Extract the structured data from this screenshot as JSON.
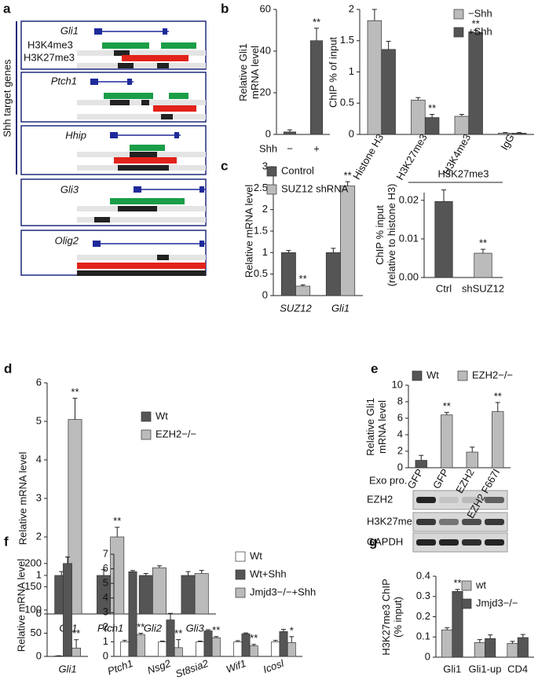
{
  "panel_labels": [
    "a",
    "b",
    "c",
    "d",
    "e",
    "f",
    "g"
  ],
  "genome_tracks": {
    "side_label": "Shh target genes",
    "marks": [
      {
        "name": "H3K4me3",
        "color": "#1a9e48"
      },
      {
        "name": "H3K27me3",
        "color": "#e2231a"
      }
    ],
    "genes": [
      "Gli1",
      "Ptch1",
      "Hhip",
      "Gli3",
      "Olig2"
    ]
  },
  "blot": {
    "rows": [
      "EZH2",
      "H3K27me3",
      "GAPDH"
    ]
  },
  "chart_data": [
    {
      "type": "bar",
      "ylabel": [
        "Relative Gli1",
        "mRNA level"
      ],
      "xlabel": "Shh",
      "categories": [
        "−",
        "+"
      ],
      "values": [
        1.2,
        45
      ],
      "errors": [
        1.0,
        6
      ],
      "stars": [
        null,
        "**"
      ],
      "color": "#555555",
      "ylim": [
        0,
        60
      ],
      "yticks": [
        0,
        20,
        40,
        60
      ]
    },
    {
      "type": "bar",
      "ylabel": "ChIP % of input",
      "categories": [
        "Histone H3",
        "H3K27me3",
        "H3K4me3",
        "IgG"
      ],
      "series": [
        {
          "name": "−Shh",
          "color": "#bbbbbb",
          "values": [
            1.82,
            0.55,
            0.29,
            0.02
          ],
          "errors": [
            0.18,
            0.04,
            0.03,
            0.01
          ],
          "stars": [
            null,
            null,
            null,
            null
          ]
        },
        {
          "name": "+Shh",
          "color": "#555555",
          "values": [
            1.36,
            0.27,
            1.63,
            0.02
          ],
          "errors": [
            0.13,
            0.05,
            0.04,
            0.01
          ],
          "stars": [
            null,
            "**",
            "**",
            null
          ]
        }
      ],
      "ylim": [
        0,
        2
      ],
      "yticks": [
        0,
        0.5,
        1,
        1.5,
        2
      ],
      "legend": true
    },
    {
      "type": "bar",
      "ylabel": "Relative mRNA level",
      "categories": [
        "SUZ12",
        "Gli1"
      ],
      "series": [
        {
          "name": "Control",
          "color": "#555555",
          "values": [
            1.0,
            1.0
          ],
          "errors": [
            0.05,
            0.1
          ],
          "stars": [
            null,
            null
          ]
        },
        {
          "name": "SUZ12 shRNA",
          "color": "#bbbbbb",
          "values": [
            0.22,
            2.55
          ],
          "errors": [
            0.03,
            0.1
          ],
          "stars": [
            "**",
            "**"
          ]
        }
      ],
      "ylim": [
        0,
        3
      ],
      "yticks": [
        0,
        0.5,
        1,
        1.5,
        2,
        2.5,
        3
      ],
      "legend": true
    },
    {
      "type": "bar",
      "title": "H3K27me3",
      "ylabel": [
        "ChIP % input",
        "(relative to histone H3)"
      ],
      "categories": [
        "Ctrl",
        "shSUZ12"
      ],
      "values": [
        0.0197,
        0.0063
      ],
      "errors": [
        0.003,
        0.001
      ],
      "stars": [
        null,
        "**"
      ],
      "colors": [
        "#555555",
        "#bbbbbb"
      ],
      "ylim": [
        0,
        0.022
      ],
      "yticks": [
        {
          "value": 0,
          "label": "0.00"
        },
        {
          "value": 0.01,
          "label": "0.01"
        },
        {
          "value": 0.02,
          "label": "0.02"
        }
      ]
    },
    {
      "type": "bar",
      "ylabel": "Relative mRNA level",
      "categories": [
        "Gli1",
        "Ptch1",
        "Gli2",
        "Gli3"
      ],
      "series": [
        {
          "name": "Wt",
          "color": "#555555",
          "values": [
            1,
            1,
            1,
            1
          ],
          "errors": [
            0.1,
            0.15,
            0.05,
            0.1
          ],
          "stars": [
            null,
            null,
            null,
            null
          ]
        },
        {
          "name": "EZH2−/−",
          "color": "#bbbbbb",
          "values": [
            5.05,
            2.0,
            1.2,
            1.05
          ],
          "errors": [
            0.55,
            0.25,
            0.05,
            0.08
          ],
          "stars": [
            "**",
            "**",
            null,
            null
          ]
        }
      ],
      "ylim": [
        0,
        6
      ],
      "yticks": [
        0,
        1,
        2,
        3,
        4,
        5,
        6
      ],
      "legend": true
    },
    {
      "type": "bar",
      "ylabel": [
        "Relative Gli1",
        "mRNA level"
      ],
      "xlabel": "Exo pro.",
      "categories": [
        "GFP",
        "GFP",
        "EZH2",
        "EZH2 F667I"
      ],
      "values": [
        0.9,
        6.4,
        1.9,
        6.8
      ],
      "errors": [
        0.6,
        0.3,
        0.6,
        1.1
      ],
      "stars": [
        null,
        "**",
        null,
        "**"
      ],
      "colors": [
        "#555555",
        "#bbbbbb",
        "#bbbbbb",
        "#bbbbbb"
      ],
      "legend_entries": [
        {
          "name": "Wt",
          "color": "#555555"
        },
        {
          "name": "EZH2−/−",
          "color": "#bbbbbb"
        }
      ],
      "ylim": [
        0,
        10
      ],
      "yticks": [
        0,
        2,
        4,
        6,
        8,
        10
      ]
    },
    {
      "type": "bar",
      "ylabel": "Relative mRNA level",
      "categories": [
        "Gli1"
      ],
      "series": [
        {
          "color": "#ffffff",
          "values": [
            1
          ],
          "errors": [
            0.5
          ],
          "stars": [
            null
          ]
        },
        {
          "color": "#555555",
          "values": [
            200
          ],
          "errors": [
            14
          ],
          "stars": [
            null
          ]
        },
        {
          "color": "#bbbbbb",
          "values": [
            18
          ],
          "errors": [
            18
          ],
          "stars": [
            "**"
          ]
        }
      ],
      "ylim": [
        0,
        220
      ],
      "yticks": [
        0,
        50,
        100,
        150,
        200
      ]
    },
    {
      "type": "bar",
      "categories": [
        "Ptch1",
        "Nsg2",
        "St8sia2",
        "Wif1",
        "Icosl"
      ],
      "series": [
        {
          "name": "Wt",
          "color": "#ffffff",
          "values": [
            1,
            1,
            1,
            1,
            1
          ],
          "errors": [
            0.1,
            0.05,
            0.05,
            0.08,
            0.1
          ],
          "stars": [
            null,
            null,
            null,
            null,
            null
          ]
        },
        {
          "name": "Wt+Shh",
          "color": "#555555",
          "values": [
            5.8,
            2.5,
            1.75,
            1.55,
            1.7
          ],
          "errors": [
            0.08,
            0.45,
            0.08,
            0.06,
            0.15
          ],
          "stars": [
            null,
            null,
            null,
            null,
            null
          ]
        },
        {
          "name": "Jmjd3−/−+Shh",
          "color": "#bbbbbb",
          "values": [
            1.5,
            0.6,
            1.28,
            0.72,
            0.95
          ],
          "errors": [
            0.08,
            0.55,
            0.08,
            0.1,
            0.4
          ],
          "stars": [
            "**",
            "**",
            "**",
            "**",
            "*"
          ]
        }
      ],
      "ylim": [
        0,
        7
      ],
      "yticks": [
        0,
        1,
        2,
        3,
        4,
        5,
        6,
        7
      ],
      "legend": true
    },
    {
      "type": "bar",
      "ylabel": [
        "H3K27me3 ChIP",
        "(% input)"
      ],
      "categories": [
        "Gli1",
        "Gli1-up",
        "CD4"
      ],
      "series": [
        {
          "name": "wt",
          "color": "#bbbbbb",
          "values": [
            0.135,
            0.072,
            0.068
          ],
          "errors": [
            0.01,
            0.015,
            0.01
          ],
          "stars": [
            null,
            null,
            null
          ]
        },
        {
          "name": "Jmjd3−/−",
          "color": "#555555",
          "values": [
            0.325,
            0.092,
            0.097
          ],
          "errors": [
            0.01,
            0.018,
            0.015
          ],
          "stars": [
            "**",
            null,
            null
          ]
        }
      ],
      "ylim": [
        0,
        0.4
      ],
      "yticks": [
        0,
        0.1,
        0.2,
        0.3,
        0.4
      ],
      "legend": true
    }
  ]
}
